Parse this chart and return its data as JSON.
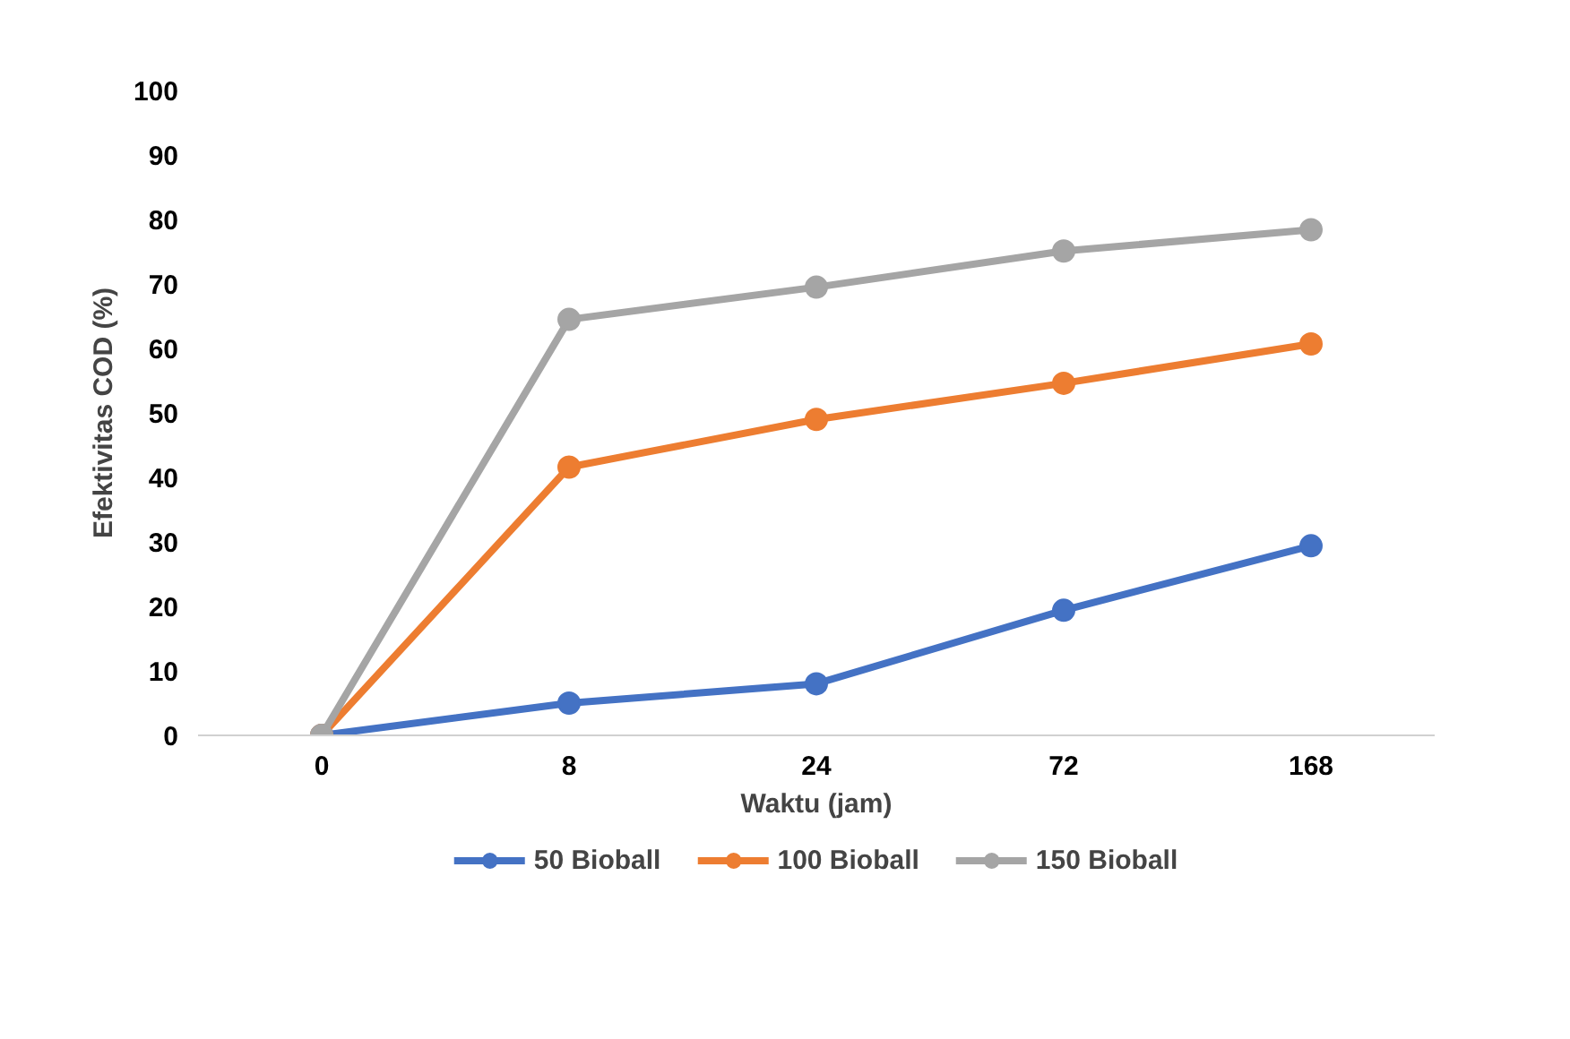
{
  "chart_data": {
    "type": "line",
    "xlabel": "Waktu (jam)",
    "ylabel": "Efektivitas COD (%)",
    "categories": [
      "0",
      "8",
      "24",
      "72",
      "168"
    ],
    "ylim": [
      0,
      100
    ],
    "yticks": [
      0,
      10,
      20,
      30,
      40,
      50,
      60,
      70,
      80,
      90,
      100
    ],
    "grid": false,
    "legend": "bottom",
    "marker": "circle",
    "line_style": "solid",
    "series": [
      {
        "name": "50 Bioball",
        "color": "#4472c4",
        "values": [
          0,
          5,
          8,
          19.4,
          29.4
        ]
      },
      {
        "name": "100 Bioball",
        "color": "#ed7d31",
        "values": [
          0,
          41.6,
          49,
          54.6,
          60.7
        ]
      },
      {
        "name": "150 Bioball",
        "color": "#a5a5a5",
        "values": [
          0,
          64.5,
          69.5,
          75.1,
          78.4
        ]
      }
    ]
  }
}
